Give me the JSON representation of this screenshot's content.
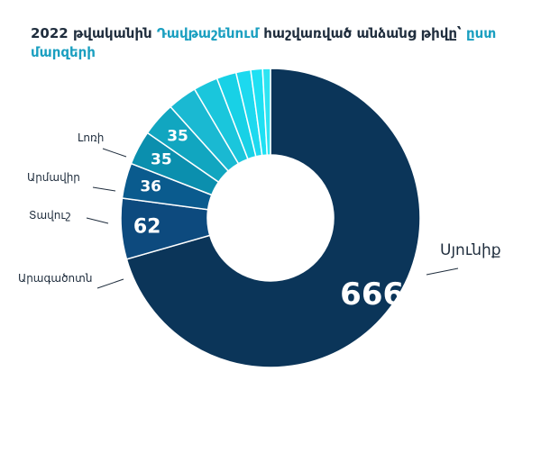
{
  "title": {
    "part1": "2022 թվականին ",
    "highlight1": "Դավթաշենում",
    "part2": " հաշվառված անձանց թիվը՝ ",
    "highlight2": "ըստ մարզերի"
  },
  "chart_data": {
    "type": "pie",
    "donut": true,
    "categories": [
      "Սյունիք",
      "Արագածոտն",
      "Տավուշ",
      "Արմավիր",
      "Լոռի",
      "",
      "",
      "",
      "",
      "",
      ""
    ],
    "values": [
      666,
      62,
      36,
      35,
      35,
      30,
      25,
      20,
      15,
      12,
      8
    ],
    "value_labels": [
      "666",
      "62",
      "36",
      "35",
      "35",
      "",
      "",
      "",
      "",
      "",
      ""
    ],
    "colors": [
      "#0b3559",
      "#0d4a7e",
      "#0a5b8e",
      "#0b8fae",
      "#11a6c0",
      "#1ab9d2",
      "#1ac6dc",
      "#18d1e6",
      "#1dd9ef",
      "#1ee0f3",
      "#2ee4f2"
    ],
    "title": "2022 թվականին Դավթաշենում հաշվառված անձանց թիվը՝ ըստ մարզերի"
  }
}
